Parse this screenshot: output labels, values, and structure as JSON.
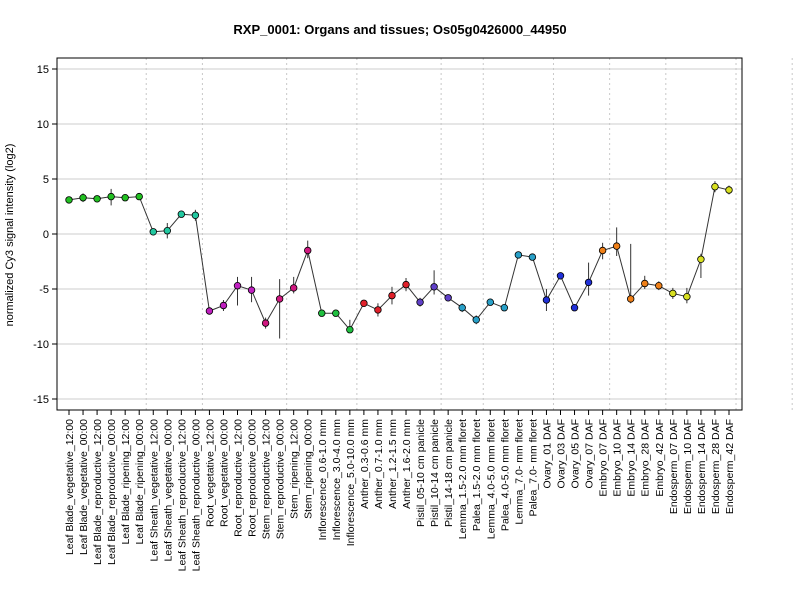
{
  "chart_data": {
    "type": "line",
    "title": "RXP_0001: Organs and tissues; Os05g0426000_44950",
    "xlabel": "",
    "ylabel": "normalized Cy3 signal intensity (log2)",
    "ylim": [
      -16,
      16
    ],
    "yticks": [
      -15,
      -10,
      -5,
      0,
      5,
      10,
      15
    ],
    "grid": "horizontal lines at y ticks; dotted vertical separators between tissue groups",
    "group_boundaries_after_index": [
      5,
      9,
      15,
      20,
      26,
      29,
      34,
      38,
      42,
      47,
      51
    ],
    "categories": [
      "Leaf Blade_vegetative_12:00",
      "Leaf Blade_vegetative_00:00",
      "Leaf Blade_reproductive_12:00",
      "Leaf Blade_reproductive_00:00",
      "Leaf Blade_ripening_12:00",
      "Leaf Blade_ripening_00:00",
      "Leaf Sheath_vegetative_12:00",
      "Leaf Sheath_vegetative_00:00",
      "Leaf Sheath_reproductive_12:00",
      "Leaf Sheath_reproductive_00:00",
      "Root_vegetative_12:00",
      "Root_vegetative_00:00",
      "Root_reproductive_12:00",
      "Root_reproductive_00:00",
      "Stem_reproductive_12:00",
      "Stem_reproductive_00:00",
      "Stem_ripening_12:00",
      "Stem_ripening_00:00",
      "Inflorescence_0.6-1.0 mm",
      "Inflorescence_3.0-4.0 mm",
      "Inflorescence_5.0-10.0 mm",
      "Anther_0.3-0.6 mm",
      "Anther_0.7-1.0 mm",
      "Anther_1.2-1.5 mm",
      "Anther_1.6-2.0 mm",
      "Pistil_05-10 cm panicle",
      "Pistil_10-14 cm panicle",
      "Pistil_14-18 cm panicle",
      "Lemma_1.5-2.0 mm floret",
      "Palea_1.5-2.0 mm floret",
      "Lemma_4.0-5.0 mm floret",
      "Palea_4.0-5.0 mm floret",
      "Lemma_7.0- mm floret",
      "Palea_7.0- mm floret",
      "Ovary_01 DAF",
      "Ovary_03 DAF",
      "Ovary_05 DAF",
      "Ovary_07 DAF",
      "Embryo_07 DAF",
      "Embryo_10 DAF",
      "Embryo_14 DAF",
      "Embryo_28 DAF",
      "Embryo_42 DAF",
      "Endosperm_07 DAF",
      "Endosperm_10 DAF",
      "Endosperm_14 DAF",
      "Endosperm_28 DAF",
      "Endosperm_42 DAF"
    ],
    "values": [
      3.1,
      3.3,
      3.2,
      3.4,
      3.3,
      3.4,
      0.2,
      0.3,
      1.8,
      1.7,
      -7.0,
      -6.5,
      -4.7,
      -5.1,
      -8.1,
      -5.9,
      -4.9,
      -1.5,
      -7.2,
      -7.2,
      -8.7,
      -6.3,
      -6.9,
      -5.6,
      -4.6,
      -6.2,
      -4.8,
      -5.8,
      -6.7,
      -7.8,
      -6.2,
      -6.7,
      -1.9,
      -2.1,
      -6.0,
      -3.8,
      -6.7,
      -4.4,
      -1.5,
      -1.1,
      -5.9,
      -4.5,
      -4.7,
      -5.4,
      -5.7,
      -2.3,
      4.3,
      4.0
    ],
    "error_low": [
      2.8,
      2.9,
      3.0,
      2.6,
      3.1,
      3.2,
      -0.1,
      -0.4,
      1.6,
      1.2,
      -7.3,
      -7.0,
      -6.5,
      -6.2,
      -8.6,
      -9.5,
      -5.4,
      -2.2,
      -7.5,
      -7.4,
      -9.0,
      -6.5,
      -7.5,
      -6.4,
      -5.2,
      -6.6,
      -5.5,
      -6.1,
      -7.1,
      -8.2,
      -6.5,
      -7.0,
      -2.1,
      -2.4,
      -7.0,
      -4.1,
      -7.0,
      -5.6,
      -2.3,
      -2.0,
      -6.3,
      -5.0,
      -5.1,
      -5.9,
      -6.3,
      -4.0,
      3.8,
      3.6
    ],
    "error_high": [
      3.4,
      3.7,
      3.4,
      4.1,
      3.5,
      3.6,
      0.5,
      1.0,
      2.0,
      2.2,
      -6.7,
      -6.0,
      -3.9,
      -3.9,
      -7.6,
      -4.1,
      -3.9,
      -0.6,
      -6.9,
      -7.0,
      -7.8,
      -6.1,
      -6.3,
      -4.8,
      -4.0,
      -5.8,
      -3.3,
      -5.5,
      -6.3,
      -7.4,
      -5.9,
      -6.4,
      -1.7,
      -1.8,
      -5.0,
      -3.5,
      -6.4,
      -2.6,
      -0.8,
      0.6,
      -0.9,
      -3.8,
      -4.3,
      -4.9,
      -4.9,
      -1.8,
      4.8,
      4.4
    ],
    "colors": [
      "#22c022",
      "#22c022",
      "#22c022",
      "#22c022",
      "#22c022",
      "#22c022",
      "#22c8a0",
      "#22c8a0",
      "#22c8a0",
      "#22c8a0",
      "#c020c0",
      "#c020c0",
      "#c020c0",
      "#c020c0",
      "#d01880",
      "#d01880",
      "#d01880",
      "#d01880",
      "#20c040",
      "#20c040",
      "#20c040",
      "#e0202a",
      "#e0202a",
      "#e0202a",
      "#e0202a",
      "#6040c8",
      "#6040c8",
      "#6040c8",
      "#28a0c8",
      "#28a0c8",
      "#28a0c8",
      "#28a0c8",
      "#28a0c8",
      "#28a0c8",
      "#2030d8",
      "#2030d8",
      "#2030d8",
      "#2030d8",
      "#f08018",
      "#f08018",
      "#f08018",
      "#f08018",
      "#f08018",
      "#d8e020",
      "#d8e020",
      "#d8e020",
      "#d8e020",
      "#d8e020"
    ]
  }
}
